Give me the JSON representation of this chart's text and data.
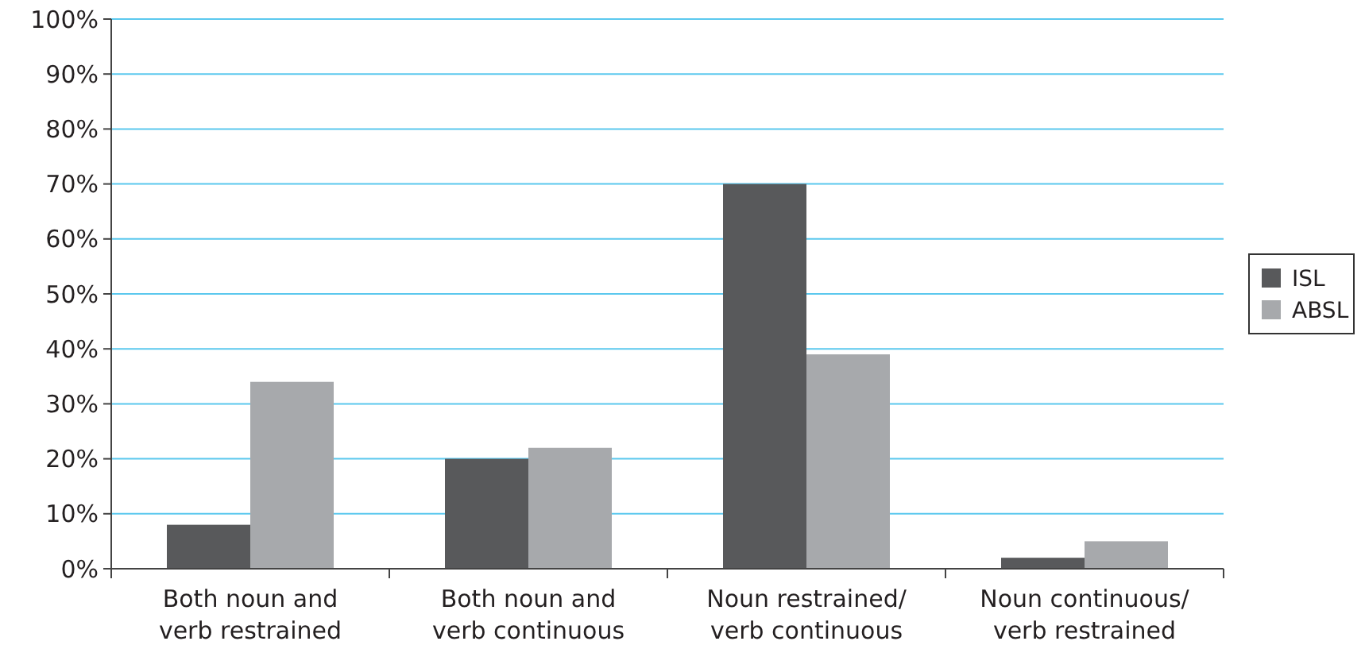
{
  "chart_data": {
    "type": "bar",
    "categories": [
      "Both noun and verb restrained",
      "Both noun and verb continuous",
      "Noun restrained/ verb continuous",
      "Noun continuous/ verb restrained"
    ],
    "series": [
      {
        "name": "ISL",
        "color": "#58595b",
        "values": [
          8,
          20,
          70,
          2
        ]
      },
      {
        "name": "ABSL",
        "color": "#a7a9ac",
        "values": [
          34,
          22,
          39,
          5
        ]
      }
    ],
    "ylim": [
      0,
      100
    ],
    "yticks": [
      {
        "value": 0,
        "label": "0%"
      },
      {
        "value": 10,
        "label": "10%"
      },
      {
        "value": 20,
        "label": "20%"
      },
      {
        "value": 30,
        "label": "30%"
      },
      {
        "value": 40,
        "label": "40%"
      },
      {
        "value": 50,
        "label": "50%"
      },
      {
        "value": 60,
        "label": "60%"
      },
      {
        "value": 70,
        "label": "70%"
      },
      {
        "value": 80,
        "label": "80%"
      },
      {
        "value": 90,
        "label": "90%"
      },
      {
        "value": 100,
        "label": "100%"
      }
    ],
    "grid": "y",
    "legend": "right"
  }
}
